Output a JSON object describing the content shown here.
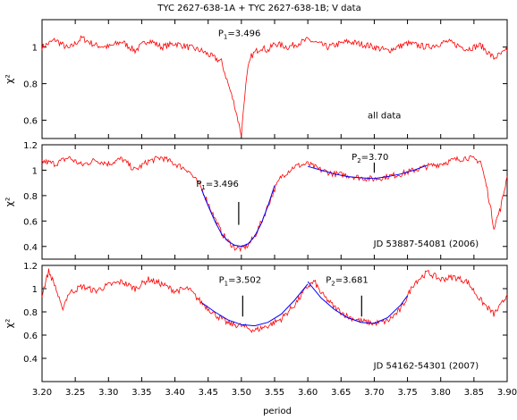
{
  "title": "TYC 2627-638-1A + TYC 2627-638-1B;     V data",
  "xlabel": "period",
  "chart_data": [
    {
      "type": "line",
      "panel": "top",
      "ylabel": "χ²",
      "xlim": [
        3.2,
        3.9
      ],
      "ylim": [
        0.5,
        1.15
      ],
      "yticks": [
        "0.6",
        "0.8",
        "1"
      ],
      "xticks": [],
      "annotations": [
        {
          "text": "all data",
          "x": 3.69,
          "y": 0.61
        }
      ],
      "period_marks": [
        {
          "label": "P",
          "sub": "1",
          "value": "=3.496",
          "x": 3.496,
          "label_x": 3.465,
          "label_y": 1.06
        }
      ],
      "series": [
        {
          "kind": "data",
          "color": "#ff0000",
          "x": [
            3.2,
            3.22,
            3.24,
            3.26,
            3.28,
            3.3,
            3.32,
            3.34,
            3.36,
            3.38,
            3.4,
            3.42,
            3.44,
            3.45,
            3.46,
            3.47,
            3.475,
            3.48,
            3.485,
            3.49,
            3.495,
            3.5,
            3.505,
            3.51,
            3.515,
            3.52,
            3.53,
            3.54,
            3.55,
            3.57,
            3.6,
            3.63,
            3.66,
            3.69,
            3.72,
            3.75,
            3.78,
            3.81,
            3.84,
            3.86,
            3.88,
            3.9
          ],
          "y": [
            1.0,
            1.04,
            0.99,
            1.05,
            1.01,
            1.0,
            1.03,
            0.98,
            1.04,
            1.0,
            1.02,
            1.0,
            0.98,
            0.96,
            0.94,
            0.92,
            0.86,
            0.8,
            0.74,
            0.68,
            0.6,
            0.52,
            0.74,
            0.88,
            0.95,
            0.97,
            1.0,
            0.98,
            1.02,
            1.0,
            1.04,
            1.0,
            1.03,
            1.01,
            0.98,
            1.02,
            1.0,
            1.03,
            0.99,
            1.01,
            0.94,
            0.98
          ]
        }
      ]
    },
    {
      "type": "line",
      "panel": "middle",
      "ylabel": "χ²",
      "xlim": [
        3.2,
        3.9
      ],
      "ylim": [
        0.3,
        1.2
      ],
      "yticks": [
        "0.4",
        "0.6",
        "0.8",
        "1",
        "1.2"
      ],
      "xticks": [],
      "annotations": [
        {
          "text": "JD 53887-54081 (2006)",
          "x": 3.699,
          "y": 0.4
        }
      ],
      "period_marks": [
        {
          "label": "P",
          "sub": "1",
          "value": "=3.496",
          "x": 3.496,
          "label_x": 3.432,
          "label_y": 0.87,
          "mark_y": [
            0.57,
            0.75
          ]
        },
        {
          "label": "P",
          "sub": "2",
          "value": "=3.70",
          "x": 3.7,
          "label_x": 3.666,
          "label_y": 1.08,
          "mark_y": [
            0.98,
            1.06
          ]
        }
      ],
      "series": [
        {
          "kind": "data",
          "color": "#ff0000",
          "x": [
            3.2,
            3.22,
            3.24,
            3.26,
            3.28,
            3.3,
            3.32,
            3.34,
            3.36,
            3.38,
            3.4,
            3.42,
            3.44,
            3.45,
            3.46,
            3.47,
            3.48,
            3.49,
            3.5,
            3.51,
            3.52,
            3.53,
            3.54,
            3.55,
            3.56,
            3.58,
            3.6,
            3.62,
            3.64,
            3.66,
            3.68,
            3.7,
            3.72,
            3.74,
            3.76,
            3.78,
            3.8,
            3.82,
            3.84,
            3.86,
            3.87,
            3.88,
            3.89,
            3.9
          ],
          "y": [
            1.07,
            1.05,
            1.1,
            1.04,
            1.08,
            1.05,
            1.09,
            1.0,
            1.07,
            1.1,
            1.05,
            1.0,
            0.86,
            0.74,
            0.62,
            0.51,
            0.44,
            0.39,
            0.38,
            0.41,
            0.48,
            0.59,
            0.72,
            0.85,
            0.95,
            1.03,
            1.05,
            1.0,
            0.97,
            0.96,
            0.94,
            0.93,
            0.95,
            0.97,
            1.0,
            1.03,
            1.05,
            1.08,
            1.1,
            1.07,
            0.85,
            0.55,
            0.7,
            0.95
          ]
        },
        {
          "kind": "fit",
          "color": "#0000ff",
          "x": [
            3.44,
            3.45,
            3.46,
            3.47,
            3.48,
            3.49,
            3.5,
            3.51,
            3.52,
            3.53,
            3.54,
            3.55
          ],
          "y": [
            0.85,
            0.72,
            0.6,
            0.5,
            0.44,
            0.41,
            0.4,
            0.42,
            0.48,
            0.58,
            0.72,
            0.88
          ]
        },
        {
          "kind": "fit",
          "color": "#0000ff",
          "x": [
            3.6,
            3.62,
            3.64,
            3.66,
            3.68,
            3.7,
            3.72,
            3.74,
            3.76,
            3.78
          ],
          "y": [
            1.03,
            1.0,
            0.97,
            0.95,
            0.94,
            0.935,
            0.95,
            0.97,
            1.0,
            1.04
          ]
        }
      ]
    },
    {
      "type": "line",
      "panel": "bottom",
      "ylabel": "χ²",
      "xlim": [
        3.2,
        3.9
      ],
      "ylim": [
        0.2,
        1.2
      ],
      "yticks": [
        "0.4",
        "0.6",
        "0.8",
        "1",
        "1.2"
      ],
      "xticks": [
        "3.20",
        "3.25",
        "3.30",
        "3.35",
        "3.40",
        "3.45",
        "3.50",
        "3.55",
        "3.60",
        "3.65",
        "3.70",
        "3.75",
        "3.80",
        "3.85",
        "3.90"
      ],
      "annotations": [
        {
          "text": "JD 54162-54301 (2007)",
          "x": 3.699,
          "y": 0.31
        }
      ],
      "period_marks": [
        {
          "label": "P",
          "sub": "1",
          "value": "=3.502",
          "x": 3.502,
          "label_x": 3.466,
          "label_y": 1.05,
          "mark_y": [
            0.76,
            0.94
          ]
        },
        {
          "label": "P",
          "sub": "2",
          "value": "=3.681",
          "x": 3.681,
          "label_x": 3.627,
          "label_y": 1.05,
          "mark_y": [
            0.76,
            0.94
          ]
        }
      ],
      "series": [
        {
          "kind": "data",
          "color": "#ff0000",
          "x": [
            3.2,
            3.21,
            3.22,
            3.23,
            3.24,
            3.26,
            3.28,
            3.3,
            3.32,
            3.34,
            3.36,
            3.38,
            3.4,
            3.42,
            3.44,
            3.46,
            3.48,
            3.5,
            3.52,
            3.54,
            3.56,
            3.58,
            3.6,
            3.61,
            3.62,
            3.64,
            3.66,
            3.68,
            3.7,
            3.72,
            3.74,
            3.76,
            3.78,
            3.8,
            3.82,
            3.84,
            3.86,
            3.88,
            3.89,
            3.9
          ],
          "y": [
            0.95,
            1.15,
            1.02,
            0.82,
            0.96,
            1.02,
            0.98,
            1.03,
            1.06,
            1.0,
            1.08,
            1.04,
            0.98,
            1.0,
            0.88,
            0.78,
            0.7,
            0.68,
            0.64,
            0.68,
            0.74,
            0.86,
            1.02,
            1.06,
            0.96,
            0.84,
            0.76,
            0.72,
            0.7,
            0.72,
            0.82,
            1.05,
            1.14,
            1.08,
            1.1,
            1.06,
            0.9,
            0.78,
            0.85,
            0.95
          ]
        },
        {
          "kind": "fit",
          "color": "#0000ff",
          "x": [
            3.44,
            3.46,
            3.48,
            3.5,
            3.52,
            3.54,
            3.56,
            3.58,
            3.6
          ],
          "y": [
            0.88,
            0.8,
            0.73,
            0.69,
            0.68,
            0.71,
            0.78,
            0.9,
            1.04
          ]
        },
        {
          "kind": "fit",
          "color": "#0000ff",
          "x": [
            3.6,
            3.62,
            3.64,
            3.66,
            3.68,
            3.7,
            3.72,
            3.74,
            3.75
          ],
          "y": [
            1.06,
            0.92,
            0.82,
            0.75,
            0.71,
            0.7,
            0.75,
            0.86,
            0.94
          ]
        }
      ]
    }
  ]
}
